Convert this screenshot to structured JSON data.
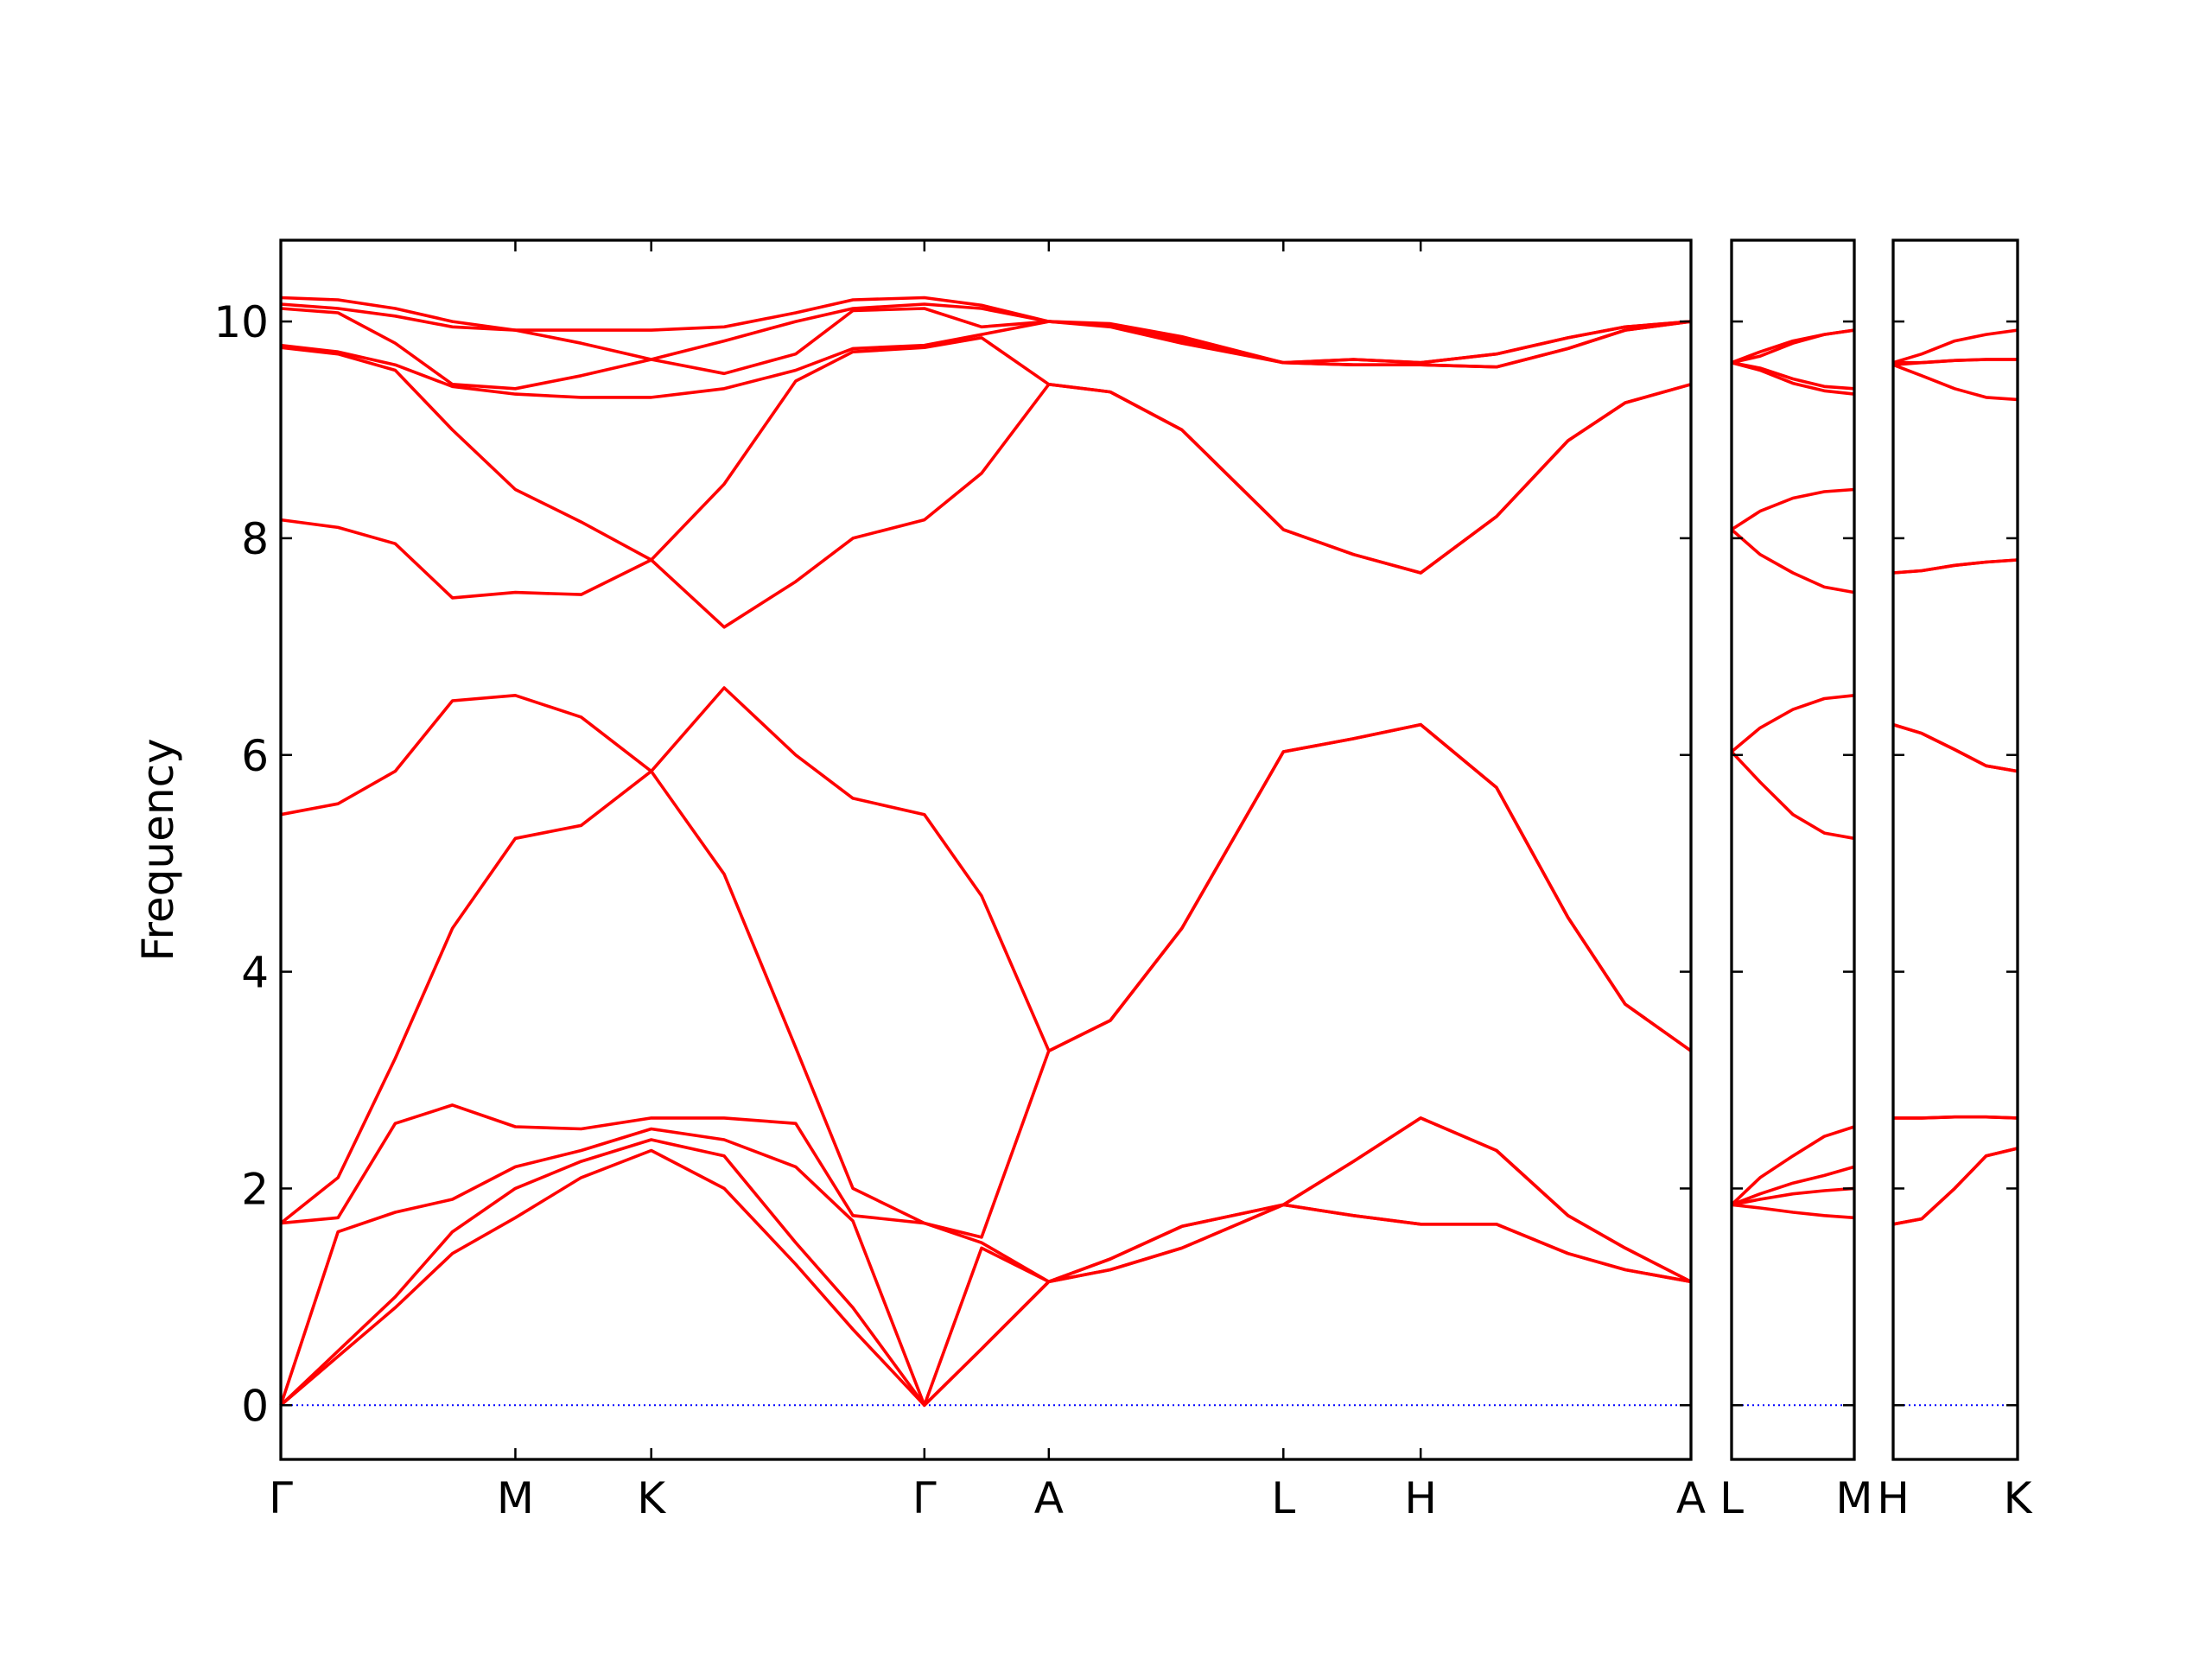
{
  "chart_data": [
    {
      "type": "line",
      "ylabel": "Frequency",
      "color": "#ff0000",
      "zero_line": 0,
      "zero_line_color": "#0000ff",
      "ytick_labels": true,
      "xlim": [
        0,
        9.86
      ],
      "ylim": [
        -0.5,
        10.75
      ],
      "yticks": [
        0,
        2,
        4,
        6,
        8,
        10
      ],
      "xticks": [
        {
          "value": 0,
          "label": "Γ"
        },
        {
          "value": 1.64,
          "label": "M"
        },
        {
          "value": 2.59,
          "label": "K"
        },
        {
          "value": 4.5,
          "label": "Γ"
        },
        {
          "value": 5.37,
          "label": "A"
        },
        {
          "value": 7.01,
          "label": "L"
        },
        {
          "value": 7.97,
          "label": "H"
        },
        {
          "value": 9.86,
          "label": "A"
        }
      ],
      "x": [
        0,
        0.4,
        0.8,
        1.2,
        1.64,
        2.1,
        2.59,
        3.1,
        3.6,
        4.0,
        4.5,
        4.9,
        5.37,
        5.8,
        6.3,
        7.01,
        7.5,
        7.97,
        8.5,
        9.0,
        9.4,
        9.86
      ],
      "series": [
        {
          "values": [
            0,
            0.45,
            0.9,
            1.4,
            1.73,
            2.1,
            2.35,
            2.0,
            1.3,
            0.7,
            0,
            0.52,
            1.14,
            1.25,
            1.45,
            1.85,
            1.75,
            1.67,
            1.67,
            1.4,
            1.25,
            1.14
          ]
        },
        {
          "values": [
            0,
            0.5,
            1.0,
            1.6,
            2.0,
            2.25,
            2.45,
            2.3,
            1.5,
            0.9,
            0,
            0.52,
            1.14,
            1.25,
            1.45,
            1.85,
            1.75,
            1.67,
            1.67,
            1.4,
            1.25,
            1.14
          ]
        },
        {
          "values": [
            0,
            1.6,
            1.78,
            1.9,
            2.2,
            2.35,
            2.55,
            2.45,
            2.2,
            1.7,
            0,
            1.45,
            1.14,
            1.35,
            1.65,
            1.85,
            2.25,
            2.65,
            2.35,
            1.75,
            1.45,
            1.14
          ]
        },
        {
          "values": [
            1.68,
            1.73,
            2.6,
            2.77,
            2.57,
            2.55,
            2.65,
            2.65,
            2.6,
            1.75,
            1.68,
            1.5,
            1.14,
            1.35,
            1.65,
            1.85,
            2.25,
            2.65,
            2.35,
            1.75,
            1.45,
            1.14
          ]
        },
        {
          "values": [
            1.68,
            2.1,
            3.2,
            4.4,
            5.23,
            5.35,
            5.85,
            4.9,
            3.3,
            2.0,
            1.68,
            1.55,
            3.27,
            3.55,
            4.4,
            6.03,
            6.15,
            6.28,
            5.7,
            4.5,
            3.7,
            3.27
          ]
        },
        {
          "values": [
            5.45,
            5.55,
            5.85,
            6.5,
            6.55,
            6.35,
            5.85,
            6.62,
            6.0,
            5.6,
            5.45,
            4.7,
            3.27,
            3.55,
            4.4,
            6.03,
            6.15,
            6.28,
            5.7,
            4.5,
            3.7,
            3.27
          ]
        },
        {
          "values": [
            8.17,
            8.1,
            7.95,
            7.45,
            7.5,
            7.48,
            7.8,
            7.18,
            7.6,
            8.0,
            8.17,
            8.6,
            9.42,
            9.35,
            9.0,
            8.08,
            7.85,
            7.68,
            8.2,
            8.9,
            9.25,
            9.42
          ]
        },
        {
          "values": [
            9.76,
            9.7,
            9.55,
            9.0,
            8.45,
            8.15,
            7.8,
            8.5,
            9.45,
            9.72,
            9.76,
            9.85,
            9.42,
            9.35,
            9.0,
            8.08,
            7.85,
            7.68,
            8.2,
            8.9,
            9.25,
            9.42
          ]
        },
        {
          "values": [
            9.78,
            9.72,
            9.6,
            9.4,
            9.33,
            9.3,
            9.3,
            9.38,
            9.55,
            9.75,
            9.78,
            9.88,
            10.0,
            9.95,
            9.8,
            9.62,
            9.6,
            9.6,
            9.58,
            9.75,
            9.92,
            10.0
          ]
        },
        {
          "values": [
            10.12,
            10.08,
            9.8,
            9.42,
            9.38,
            9.5,
            9.65,
            9.52,
            9.7,
            10.1,
            10.12,
            9.95,
            10.0,
            9.96,
            9.82,
            9.62,
            9.6,
            9.6,
            9.58,
            9.75,
            9.92,
            10.0
          ]
        },
        {
          "values": [
            10.16,
            10.12,
            10.05,
            9.95,
            9.92,
            9.8,
            9.65,
            9.82,
            10.0,
            10.12,
            10.16,
            10.12,
            10.0,
            9.97,
            9.84,
            9.62,
            9.65,
            9.62,
            9.7,
            9.85,
            9.95,
            10.0
          ]
        },
        {
          "values": [
            10.22,
            10.2,
            10.12,
            10.0,
            9.92,
            9.92,
            9.92,
            9.95,
            10.08,
            10.2,
            10.22,
            10.15,
            10.0,
            9.98,
            9.86,
            9.62,
            9.65,
            9.62,
            9.7,
            9.85,
            9.95,
            10.0
          ]
        }
      ]
    },
    {
      "type": "line",
      "color": "#ff0000",
      "zero_line": 0,
      "zero_line_color": "#0000ff",
      "ytick_labels": false,
      "xlim": [
        0,
        0.86
      ],
      "ylim": [
        -0.5,
        10.75
      ],
      "yticks": [
        0,
        2,
        4,
        6,
        8,
        10
      ],
      "xticks": [
        {
          "value": 0,
          "label": "L"
        },
        {
          "value": 0.86,
          "label": "M"
        }
      ],
      "x": [
        0,
        0.2,
        0.43,
        0.65,
        0.86
      ],
      "series": [
        {
          "values": [
            1.85,
            1.82,
            1.78,
            1.75,
            1.73
          ]
        },
        {
          "values": [
            1.85,
            1.9,
            1.95,
            1.98,
            2.0
          ]
        },
        {
          "values": [
            1.85,
            1.95,
            2.05,
            2.12,
            2.2
          ]
        },
        {
          "values": [
            1.85,
            2.1,
            2.3,
            2.48,
            2.57
          ]
        },
        {
          "values": [
            6.03,
            5.75,
            5.45,
            5.28,
            5.23
          ]
        },
        {
          "values": [
            6.03,
            6.25,
            6.42,
            6.52,
            6.55
          ]
        },
        {
          "values": [
            8.08,
            7.85,
            7.68,
            7.55,
            7.5
          ]
        },
        {
          "values": [
            8.08,
            8.25,
            8.37,
            8.43,
            8.45
          ]
        },
        {
          "values": [
            9.62,
            9.55,
            9.43,
            9.36,
            9.33
          ]
        },
        {
          "values": [
            9.62,
            9.57,
            9.47,
            9.4,
            9.38
          ]
        },
        {
          "values": [
            9.62,
            9.68,
            9.8,
            9.88,
            9.92
          ]
        },
        {
          "values": [
            9.62,
            9.72,
            9.82,
            9.88,
            9.92
          ]
        }
      ]
    },
    {
      "type": "line",
      "color": "#ff0000",
      "zero_line": 0,
      "zero_line_color": "#0000ff",
      "ytick_labels": false,
      "xlim": [
        0,
        0.87
      ],
      "ylim": [
        -0.5,
        10.75
      ],
      "yticks": [
        0,
        2,
        4,
        6,
        8,
        10
      ],
      "xticks": [
        {
          "value": 0,
          "label": "H"
        },
        {
          "value": 0.87,
          "label": "K"
        }
      ],
      "x": [
        0,
        0.2,
        0.43,
        0.65,
        0.87
      ],
      "series": [
        {
          "values": [
            1.67,
            1.72,
            2.0,
            2.3,
            2.37
          ]
        },
        {
          "values": [
            1.67,
            1.72,
            2.0,
            2.3,
            2.37
          ]
        },
        {
          "values": [
            2.65,
            2.65,
            2.66,
            2.66,
            2.65
          ]
        },
        {
          "values": [
            2.65,
            2.65,
            2.66,
            2.66,
            2.65
          ]
        },
        {
          "values": [
            6.28,
            6.2,
            6.05,
            5.9,
            5.85
          ]
        },
        {
          "values": [
            6.28,
            6.2,
            6.05,
            5.9,
            5.85
          ]
        },
        {
          "values": [
            7.68,
            7.7,
            7.75,
            7.78,
            7.8
          ]
        },
        {
          "values": [
            7.68,
            7.7,
            7.75,
            7.78,
            7.8
          ]
        },
        {
          "values": [
            9.6,
            9.5,
            9.38,
            9.3,
            9.28
          ]
        },
        {
          "values": [
            9.6,
            9.62,
            9.64,
            9.65,
            9.65
          ]
        },
        {
          "values": [
            9.62,
            9.62,
            9.64,
            9.65,
            9.65
          ]
        },
        {
          "values": [
            9.62,
            9.7,
            9.82,
            9.88,
            9.92
          ]
        }
      ]
    }
  ]
}
